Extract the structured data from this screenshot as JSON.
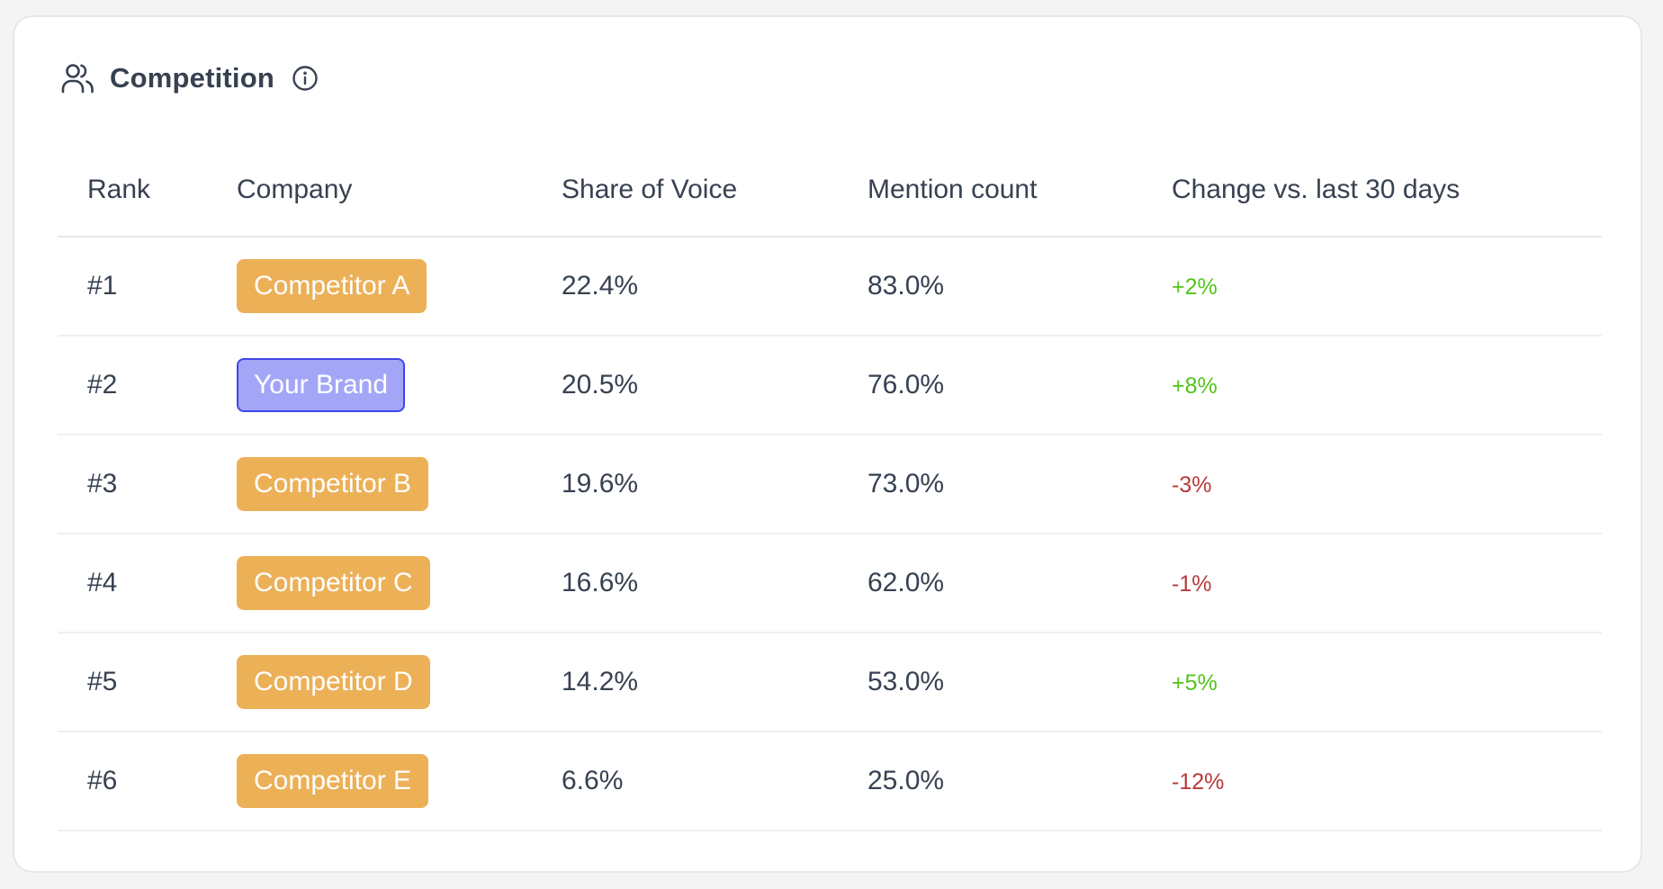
{
  "card": {
    "title": "Competition",
    "title_icon": "users-icon",
    "info_icon": "info-circle-icon"
  },
  "table": {
    "headers": {
      "rank": "Rank",
      "company": "Company",
      "share_of_voice": "Share of Voice",
      "mention_count": "Mention count",
      "change": "Change vs. last 30 days"
    },
    "rows": [
      {
        "rank": "#1",
        "company": "Competitor A",
        "is_brand": false,
        "share_of_voice": "22.4%",
        "mention_count": "83.0%",
        "change": "+2%",
        "trend": "up"
      },
      {
        "rank": "#2",
        "company": "Your Brand",
        "is_brand": true,
        "share_of_voice": "20.5%",
        "mention_count": "76.0%",
        "change": "+8%",
        "trend": "up"
      },
      {
        "rank": "#3",
        "company": "Competitor B",
        "is_brand": false,
        "share_of_voice": "19.6%",
        "mention_count": "73.0%",
        "change": "-3%",
        "trend": "down"
      },
      {
        "rank": "#4",
        "company": "Competitor C",
        "is_brand": false,
        "share_of_voice": "16.6%",
        "mention_count": "62.0%",
        "change": "-1%",
        "trend": "down"
      },
      {
        "rank": "#5",
        "company": "Competitor D",
        "is_brand": false,
        "share_of_voice": "14.2%",
        "mention_count": "53.0%",
        "change": "+5%",
        "trend": "up"
      },
      {
        "rank": "#6",
        "company": "Competitor E",
        "is_brand": false,
        "share_of_voice": "6.6%",
        "mention_count": "25.0%",
        "change": "-12%",
        "trend": "down"
      }
    ]
  },
  "colors": {
    "competitor_badge": "#ecb057",
    "brand_badge": "#a3a6f7",
    "brand_badge_border": "#3f47e6",
    "positive_change": "#52c41a",
    "negative_change": "#b83a3a",
    "text": "#374151"
  }
}
